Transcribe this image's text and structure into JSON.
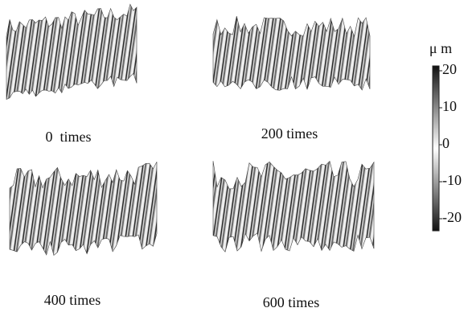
{
  "panels": [
    {
      "label": "0  times"
    },
    {
      "label": "200 times"
    },
    {
      "label": "400 times"
    },
    {
      "label": "600 times"
    }
  ],
  "colorbar": {
    "unit": "μ m",
    "range": [
      -20,
      20
    ],
    "ticks": [
      20,
      10,
      0,
      -10,
      -20
    ]
  }
}
